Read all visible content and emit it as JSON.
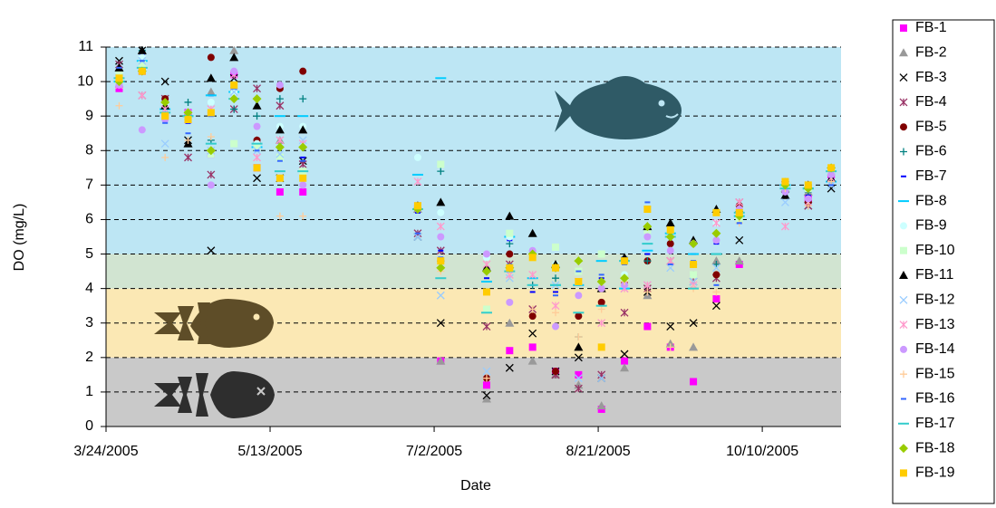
{
  "chart_data": {
    "type": "scatter",
    "x_label": "Date",
    "y_label": "DO (mg/L)",
    "x": [
      "2005-03-28",
      "2005-04-04",
      "2005-04-11",
      "2005-04-18",
      "2005-04-25",
      "2005-05-02",
      "2005-05-09",
      "2005-05-16",
      "2005-05-23",
      "2005-06-27",
      "2005-07-04",
      "2005-07-18",
      "2005-07-25",
      "2005-08-01",
      "2005-08-08",
      "2005-08-15",
      "2005-08-22",
      "2005-08-29",
      "2005-09-05",
      "2005-09-12",
      "2005-09-19",
      "2005-09-26",
      "2005-10-03",
      "2005-10-17",
      "2005-10-24",
      "2005-10-31"
    ],
    "xlim": [
      "2005-03-24",
      "2005-11-03"
    ],
    "xticks": [
      {
        "value": "2005-03-24",
        "label": "3/24/2005"
      },
      {
        "value": "2005-05-13",
        "label": "5/13/2005"
      },
      {
        "value": "2005-07-02",
        "label": "7/2/2005"
      },
      {
        "value": "2005-08-21",
        "label": "8/21/2005"
      },
      {
        "value": "2005-10-10",
        "label": "10/10/2005"
      }
    ],
    "ylim": [
      0,
      11
    ],
    "yticks": [
      0,
      1,
      2,
      3,
      4,
      5,
      6,
      7,
      8,
      9,
      10,
      11
    ],
    "grid": true,
    "legend": "right",
    "bands": [
      {
        "from": 0,
        "to": 2,
        "color": "#c9c9c9"
      },
      {
        "from": 2,
        "to": 4,
        "color": "#fbe8b4"
      },
      {
        "from": 4,
        "to": 5,
        "color": "#d1e4d1"
      },
      {
        "from": 5,
        "to": 11,
        "color": "#bde6f4"
      }
    ],
    "series": [
      {
        "name": "FB-1",
        "color": "#ff00ff",
        "marker": "square",
        "values": [
          9.8,
          10.3,
          9.0,
          9.1,
          7.9,
          10.2,
          7.5,
          6.8,
          6.8,
          6.4,
          1.9,
          1.2,
          2.2,
          2.3,
          1.6,
          1.5,
          0.5,
          1.9,
          2.9,
          2.3,
          1.3,
          3.7,
          4.7,
          7.0,
          6.6,
          7.3
        ]
      },
      {
        "name": "FB-2",
        "color": "#999999",
        "marker": "triangle",
        "values": [
          10.2,
          10.9,
          9.3,
          8.2,
          9.7,
          10.9,
          8.3,
          8.3,
          8.6,
          6.3,
          1.9,
          0.8,
          3.0,
          1.9,
          1.5,
          1.2,
          0.6,
          1.7,
          3.8,
          2.4,
          2.3,
          4.8,
          4.8,
          6.9,
          6.8,
          7.2
        ]
      },
      {
        "name": "FB-3",
        "color": "#000000",
        "marker": "x",
        "values": [
          10.6,
          10.9,
          10.0,
          8.3,
          5.1,
          10.1,
          7.2,
          7.2,
          7.7,
          5.5,
          3.0,
          0.9,
          1.7,
          2.7,
          1.6,
          2.0,
          1.4,
          2.1,
          3.9,
          2.9,
          3.0,
          3.5,
          5.4,
          6.7,
          6.4,
          6.9
        ]
      },
      {
        "name": "FB-4",
        "color": "#993366",
        "marker": "star",
        "values": [
          10.5,
          9.6,
          9.5,
          7.8,
          7.3,
          9.2,
          9.8,
          9.3,
          7.6,
          5.6,
          5.1,
          2.9,
          4.7,
          3.4,
          1.5,
          1.1,
          1.5,
          3.3,
          4.0,
          4.8,
          4.2,
          4.3,
          6.5,
          7.0,
          6.4,
          7.2
        ]
      },
      {
        "name": "FB-5",
        "color": "#800000",
        "marker": "circle",
        "values": [
          10.2,
          10.3,
          9.5,
          9.0,
          10.7,
          9.8,
          8.3,
          9.8,
          10.3,
          6.4,
          4.8,
          1.4,
          5.0,
          3.2,
          1.6,
          3.2,
          3.6,
          4.2,
          4.8,
          5.3,
          4.4,
          4.4,
          6.4,
          7.0,
          6.5,
          7.3
        ]
      },
      {
        "name": "FB-6",
        "color": "#008080",
        "marker": "plus",
        "values": [
          10.3,
          10.9,
          9.1,
          9.4,
          8.3,
          9.2,
          9.0,
          9.5,
          9.5,
          6.4,
          7.4,
          4.6,
          5.3,
          4.1,
          4.3,
          2.6,
          4.2,
          4.9,
          4.8,
          5.6,
          4.7,
          4.7,
          6.0,
          7.1,
          6.8,
          7.1
        ]
      },
      {
        "name": "FB-7",
        "color": "#0000ff",
        "marker": "dash",
        "values": [
          10.4,
          10.8,
          9.2,
          8.8,
          9.6,
          9.9,
          8.2,
          7.8,
          7.8,
          6.2,
          5.1,
          4.3,
          5.4,
          3.9,
          3.9,
          4.5,
          4.3,
          4.9,
          5.0,
          5.8,
          5.0,
          5.3,
          5.9,
          7.0,
          6.7,
          7.1
        ]
      },
      {
        "name": "FB-8",
        "color": "#00ccff",
        "marker": "longdash",
        "values": [
          10.0,
          10.6,
          9.2,
          9.0,
          9.6,
          9.7,
          8.1,
          9.0,
          9.0,
          7.3,
          10.1,
          4.2,
          5.5,
          4.3,
          4.1,
          4.1,
          4.8,
          4.0,
          5.1,
          5.6,
          5.0,
          5.0,
          6.1,
          7.0,
          6.9,
          7.1
        ]
      },
      {
        "name": "FB-9",
        "color": "#ccffff",
        "marker": "circle",
        "values": [
          10.3,
          10.7,
          9.3,
          9.1,
          9.4,
          9.7,
          8.2,
          8.7,
          8.7,
          7.8,
          6.2,
          4.9,
          5.5,
          4.9,
          4.7,
          4.8,
          5.0,
          4.4,
          5.7,
          5.1,
          4.4,
          5.9,
          6.3,
          6.9,
          6.9,
          7.3
        ]
      },
      {
        "name": "FB-10",
        "color": "#ccffcc",
        "marker": "square",
        "values": [
          10.2,
          10.5,
          9.0,
          8.9,
          7.9,
          8.2,
          8.1,
          7.8,
          7.4,
          6.4,
          7.6,
          3.4,
          5.6,
          4.9,
          5.2,
          4.5,
          5.0,
          4.3,
          5.7,
          5.7,
          4.4,
          6.2,
          6.0,
          7.0,
          6.9,
          7.4
        ]
      },
      {
        "name": "FB-11",
        "color": "#000000",
        "marker": "triangle",
        "values": [
          10.4,
          10.9,
          9.3,
          8.2,
          10.1,
          10.7,
          9.3,
          8.6,
          8.6,
          6.4,
          6.5,
          4.6,
          6.1,
          5.6,
          4.7,
          2.3,
          4.0,
          4.9,
          5.8,
          5.9,
          5.4,
          6.3,
          6.3,
          6.7,
          7.0,
          7.2
        ]
      },
      {
        "name": "FB-12",
        "color": "#99ccff",
        "marker": "x",
        "values": [
          10.1,
          10.6,
          8.2,
          9.0,
          8.0,
          9.7,
          8.0,
          7.9,
          8.3,
          5.5,
          3.8,
          1.6,
          4.3,
          5.0,
          4.1,
          1.4,
          1.4,
          4.0,
          4.1,
          4.6,
          4.2,
          4.6,
          6.2,
          6.5,
          6.5,
          7.0
        ]
      },
      {
        "name": "FB-13",
        "color": "#ff99cc",
        "marker": "star",
        "values": [
          9.9,
          9.6,
          9.2,
          8.9,
          9.2,
          10.2,
          7.8,
          8.3,
          8.2,
          7.1,
          5.8,
          4.7,
          4.4,
          4.4,
          3.5,
          4.2,
          3.0,
          4.0,
          4.1,
          4.8,
          4.1,
          5.9,
          6.5,
          5.8,
          6.5,
          7.2
        ]
      },
      {
        "name": "FB-14",
        "color": "#cc99ff",
        "marker": "circle",
        "values": [
          9.9,
          8.6,
          8.9,
          8.9,
          7.0,
          10.3,
          8.7,
          9.9,
          7.0,
          6.3,
          5.5,
          5.0,
          3.6,
          5.1,
          2.9,
          3.8,
          4.0,
          4.1,
          5.5,
          5.1,
          5.3,
          5.4,
          6.3,
          6.8,
          6.6,
          7.3
        ]
      },
      {
        "name": "FB-15",
        "color": "#ffcc99",
        "marker": "plus",
        "values": [
          9.3,
          10.3,
          7.8,
          8.3,
          8.4,
          9.9,
          7.5,
          6.1,
          6.1,
          6.3,
          4.5,
          1.4,
          4.5,
          3.4,
          3.3,
          2.6,
          3.4,
          4.2,
          3.9,
          2.3,
          4.0,
          3.9,
          5.9,
          6.9,
          6.4,
          7.1
        ]
      },
      {
        "name": "FB-16",
        "color": "#3366ff",
        "marker": "dash",
        "values": [
          10.4,
          10.6,
          8.8,
          8.5,
          9.0,
          9.8,
          8.0,
          7.7,
          7.7,
          5.6,
          4.9,
          3.9,
          4.7,
          4.1,
          3.8,
          4.5,
          4.4,
          4.7,
          6.5,
          4.7,
          4.8,
          4.1,
          5.9,
          7.0,
          6.9,
          7.0
        ]
      },
      {
        "name": "FB-17",
        "color": "#33cccc",
        "marker": "longdash",
        "values": [
          10.1,
          10.4,
          9.1,
          9.0,
          8.2,
          9.5,
          8.2,
          7.4,
          7.4,
          6.3,
          4.3,
          3.3,
          4.5,
          4.1,
          4.1,
          3.3,
          3.5,
          4.8,
          5.3,
          5.5,
          4.0,
          5.0,
          6.2,
          6.9,
          6.9,
          7.4
        ]
      },
      {
        "name": "FB-18",
        "color": "#99cc00",
        "marker": "diamond",
        "values": [
          10.0,
          10.3,
          9.4,
          9.1,
          8.0,
          9.5,
          9.5,
          8.1,
          8.1,
          6.3,
          4.6,
          4.5,
          4.6,
          5.0,
          4.6,
          4.8,
          4.2,
          4.3,
          5.8,
          5.5,
          5.3,
          5.6,
          6.1,
          7.0,
          6.9,
          7.5
        ]
      },
      {
        "name": "FB-19",
        "color": "#ffcc00",
        "marker": "square",
        "values": [
          10.1,
          10.3,
          9.0,
          8.9,
          9.1,
          9.9,
          7.5,
          7.2,
          7.2,
          6.4,
          4.8,
          3.9,
          4.6,
          4.9,
          4.6,
          4.2,
          2.3,
          4.8,
          6.3,
          5.7,
          4.7,
          6.2,
          6.2,
          7.1,
          7.0,
          7.5
        ]
      }
    ]
  }
}
